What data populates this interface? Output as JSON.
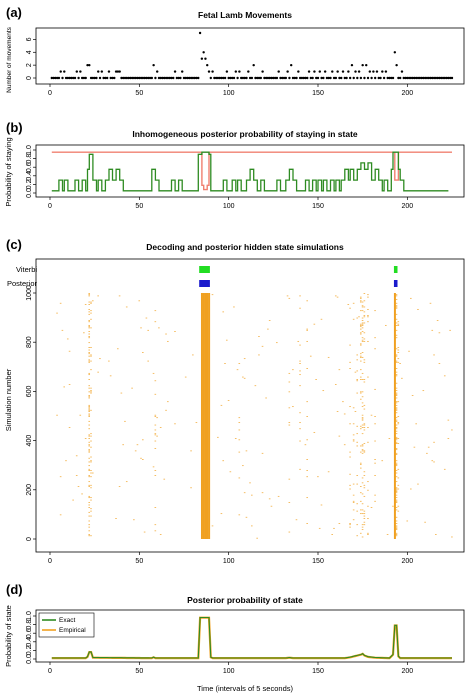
{
  "panel_labels": {
    "a": "(a)",
    "b": "(b)",
    "c": "(c)",
    "d": "(d)"
  },
  "colors": {
    "movements": "#000000",
    "state_prob": "#2e8b22",
    "state_prob_alt": "#f08070",
    "viterbi": "#22dd22",
    "posterior": "#1a1acc",
    "simulations": "#f0a020",
    "exact": "#2e8b22",
    "empirical": "#f0a020"
  },
  "chart_data": [
    {
      "id": "a",
      "type": "scatter",
      "title": "Fetal Lamb Movements",
      "xlabel": "",
      "ylabel": "Number of movements",
      "xlim": [
        0,
        225
      ],
      "ylim": [
        0,
        7
      ],
      "xticks": [
        0,
        50,
        100,
        150,
        200
      ],
      "yticks": [
        0,
        2,
        4,
        6
      ],
      "nonzero_points": [
        [
          6,
          1
        ],
        [
          8,
          1
        ],
        [
          15,
          1
        ],
        [
          17,
          1
        ],
        [
          21,
          2
        ],
        [
          22,
          2
        ],
        [
          27,
          1
        ],
        [
          29,
          1
        ],
        [
          33,
          1
        ],
        [
          37,
          1
        ],
        [
          38,
          1
        ],
        [
          39,
          1
        ],
        [
          58,
          2
        ],
        [
          60,
          1
        ],
        [
          70,
          1
        ],
        [
          74,
          1
        ],
        [
          84,
          7
        ],
        [
          85,
          3
        ],
        [
          86,
          4
        ],
        [
          87,
          3
        ],
        [
          88,
          2
        ],
        [
          89,
          1
        ],
        [
          91,
          1
        ],
        [
          99,
          1
        ],
        [
          104,
          1
        ],
        [
          106,
          1
        ],
        [
          111,
          1
        ],
        [
          114,
          2
        ],
        [
          119,
          1
        ],
        [
          128,
          1
        ],
        [
          133,
          1
        ],
        [
          135,
          2
        ],
        [
          139,
          1
        ],
        [
          145,
          1
        ],
        [
          148,
          1
        ],
        [
          151,
          1
        ],
        [
          154,
          1
        ],
        [
          158,
          1
        ],
        [
          161,
          1
        ],
        [
          164,
          1
        ],
        [
          167,
          1
        ],
        [
          169,
          2
        ],
        [
          171,
          1
        ],
        [
          173,
          1
        ],
        [
          175,
          2
        ],
        [
          177,
          2
        ],
        [
          179,
          1
        ],
        [
          181,
          1
        ],
        [
          183,
          1
        ],
        [
          186,
          1
        ],
        [
          188,
          1
        ],
        [
          193,
          4
        ],
        [
          194,
          2
        ],
        [
          197,
          1
        ]
      ],
      "baseline_value": 0,
      "n_obs": 225
    },
    {
      "id": "b",
      "type": "line",
      "title": "Inhomogeneous posterior probability of staying in state",
      "xlabel": "",
      "ylabel": "Probability of staying",
      "xlim": [
        0,
        225
      ],
      "ylim": [
        0,
        1
      ],
      "xticks": [
        0,
        50,
        100,
        150,
        200
      ],
      "yticks": [
        0.0,
        0.2,
        0.4,
        0.6,
        0.8,
        1.0
      ],
      "series": [
        {
          "color_key": "state_prob_alt",
          "default": 0.95,
          "segments": [
            [
              84,
              0.95
            ],
            [
              85,
              0.18
            ],
            [
              86,
              0.08
            ],
            [
              87,
              0.08
            ],
            [
              88,
              0.18
            ],
            [
              89,
              0.95
            ],
            [
              192,
              0.95
            ],
            [
              193,
              0.3
            ],
            [
              194,
              0.3
            ],
            [
              195,
              0.95
            ]
          ]
        },
        {
          "color_key": "state_prob",
          "default": 0.05,
          "steps": [
            [
              5,
              0.3
            ],
            [
              7,
              0.05
            ],
            [
              8,
              0.3
            ],
            [
              10,
              0.05
            ],
            [
              14,
              0.3
            ],
            [
              16,
              0.05
            ],
            [
              18,
              0.3
            ],
            [
              20,
              0.05
            ],
            [
              21,
              0.55
            ],
            [
              22,
              0.9
            ],
            [
              24,
              0.3
            ],
            [
              26,
              0.05
            ],
            [
              27,
              0.3
            ],
            [
              29,
              0.05
            ],
            [
              31,
              0.3
            ],
            [
              33,
              0.55
            ],
            [
              35,
              0.3
            ],
            [
              37,
              0.55
            ],
            [
              39,
              0.3
            ],
            [
              41,
              0.05
            ],
            [
              57,
              0.55
            ],
            [
              59,
              0.3
            ],
            [
              61,
              0.05
            ],
            [
              68,
              0.3
            ],
            [
              70,
              0.05
            ],
            [
              72,
              0.3
            ],
            [
              74,
              0.05
            ],
            [
              83,
              0.9
            ],
            [
              85,
              0.95
            ],
            [
              89,
              0.9
            ],
            [
              90,
              0.05
            ],
            [
              97,
              0.3
            ],
            [
              99,
              0.05
            ],
            [
              102,
              0.3
            ],
            [
              104,
              0.05
            ],
            [
              105,
              0.3
            ],
            [
              107,
              0.05
            ],
            [
              110,
              0.3
            ],
            [
              112,
              0.55
            ],
            [
              114,
              0.3
            ],
            [
              116,
              0.05
            ],
            [
              118,
              0.3
            ],
            [
              120,
              0.05
            ],
            [
              127,
              0.3
            ],
            [
              129,
              0.05
            ],
            [
              132,
              0.3
            ],
            [
              134,
              0.55
            ],
            [
              136,
              0.3
            ],
            [
              138,
              0.05
            ],
            [
              143,
              0.3
            ],
            [
              145,
              0.05
            ],
            [
              147,
              0.3
            ],
            [
              149,
              0.05
            ],
            [
              150,
              0.3
            ],
            [
              152,
              0.05
            ],
            [
              153,
              0.3
            ],
            [
              155,
              0.05
            ],
            [
              157,
              0.3
            ],
            [
              159,
              0.05
            ],
            [
              160,
              0.3
            ],
            [
              162,
              0.05
            ],
            [
              163,
              0.3
            ],
            [
              165,
              0.55
            ],
            [
              167,
              0.3
            ],
            [
              168,
              0.55
            ],
            [
              170,
              0.3
            ],
            [
              172,
              0.55
            ],
            [
              174,
              0.7
            ],
            [
              176,
              0.55
            ],
            [
              178,
              0.7
            ],
            [
              180,
              0.3
            ],
            [
              182,
              0.55
            ],
            [
              184,
              0.3
            ],
            [
              186,
              0.05
            ],
            [
              187,
              0.3
            ],
            [
              189,
              0.05
            ],
            [
              191,
              0.55
            ],
            [
              192,
              0.95
            ],
            [
              195,
              0.55
            ],
            [
              196,
              0.3
            ],
            [
              198,
              0.05
            ],
            [
              223,
              0.05
            ]
          ]
        }
      ]
    },
    {
      "id": "c",
      "type": "heatmap",
      "title": "Decoding and posterior hidden state simulations",
      "xlabel": "",
      "ylabel": "Simulation number",
      "row_labels": [
        "Viterbi",
        "Posterior"
      ],
      "xlim": [
        0,
        225
      ],
      "ylim": [
        0,
        1000
      ],
      "xticks": [
        0,
        50,
        100,
        150,
        200
      ],
      "yticks": [
        0,
        200,
        400,
        600,
        800,
        1000
      ],
      "viterbi_state2": [
        [
          84,
          89
        ],
        [
          193,
          194
        ]
      ],
      "posterior_state2": [
        [
          84,
          89
        ],
        [
          193,
          194
        ]
      ],
      "simulation_state2_frequency": [
        [
          22,
          0.35
        ],
        [
          23,
          0.2
        ],
        [
          59,
          0.08
        ],
        [
          85,
          1.0
        ],
        [
          86,
          1.0
        ],
        [
          87,
          1.0
        ],
        [
          88,
          1.0
        ],
        [
          89,
          0.97
        ],
        [
          106,
          0.05
        ],
        [
          134,
          0.06
        ],
        [
          140,
          0.05
        ],
        [
          144,
          0.05
        ],
        [
          168,
          0.06
        ],
        [
          170,
          0.08
        ],
        [
          172,
          0.1
        ],
        [
          174,
          0.2
        ],
        [
          175,
          0.22
        ],
        [
          176,
          0.15
        ],
        [
          178,
          0.08
        ],
        [
          182,
          0.06
        ],
        [
          193,
          0.95
        ],
        [
          194,
          0.4
        ],
        [
          195,
          0.12
        ]
      ],
      "background_frequency": 0.004
    },
    {
      "id": "d",
      "type": "line",
      "title": "Posterior probability of state",
      "xlabel": "Time (intervals of 5 seconds)",
      "ylabel": "Probability of state",
      "xlim": [
        0,
        225
      ],
      "ylim": [
        0,
        1
      ],
      "xticks": [
        0,
        50,
        100,
        150,
        200
      ],
      "yticks": [
        0.0,
        0.2,
        0.4,
        0.6,
        0.8,
        1.0
      ],
      "legend_position": "top-left",
      "series": [
        {
          "name": "Exact",
          "color_key": "exact"
        },
        {
          "name": "Empirical",
          "color_key": "empirical"
        }
      ],
      "profile": [
        [
          0,
          0.02
        ],
        [
          20,
          0.02
        ],
        [
          21,
          0.05
        ],
        [
          22,
          0.16
        ],
        [
          23,
          0.16
        ],
        [
          24,
          0.03
        ],
        [
          57,
          0.02
        ],
        [
          58,
          0.04
        ],
        [
          59,
          0.02
        ],
        [
          83,
          0.02
        ],
        [
          84,
          0.96
        ],
        [
          89,
          0.96
        ],
        [
          90,
          0.04
        ],
        [
          91,
          0.02
        ],
        [
          132,
          0.02
        ],
        [
          134,
          0.03
        ],
        [
          136,
          0.02
        ],
        [
          165,
          0.02
        ],
        [
          168,
          0.04
        ],
        [
          172,
          0.08
        ],
        [
          174,
          0.1
        ],
        [
          175,
          0.12
        ],
        [
          176,
          0.08
        ],
        [
          178,
          0.05
        ],
        [
          182,
          0.03
        ],
        [
          190,
          0.02
        ],
        [
          192,
          0.1
        ],
        [
          193,
          0.78
        ],
        [
          194,
          0.78
        ],
        [
          195,
          0.06
        ],
        [
          196,
          0.02
        ],
        [
          225,
          0.02
        ]
      ]
    }
  ]
}
